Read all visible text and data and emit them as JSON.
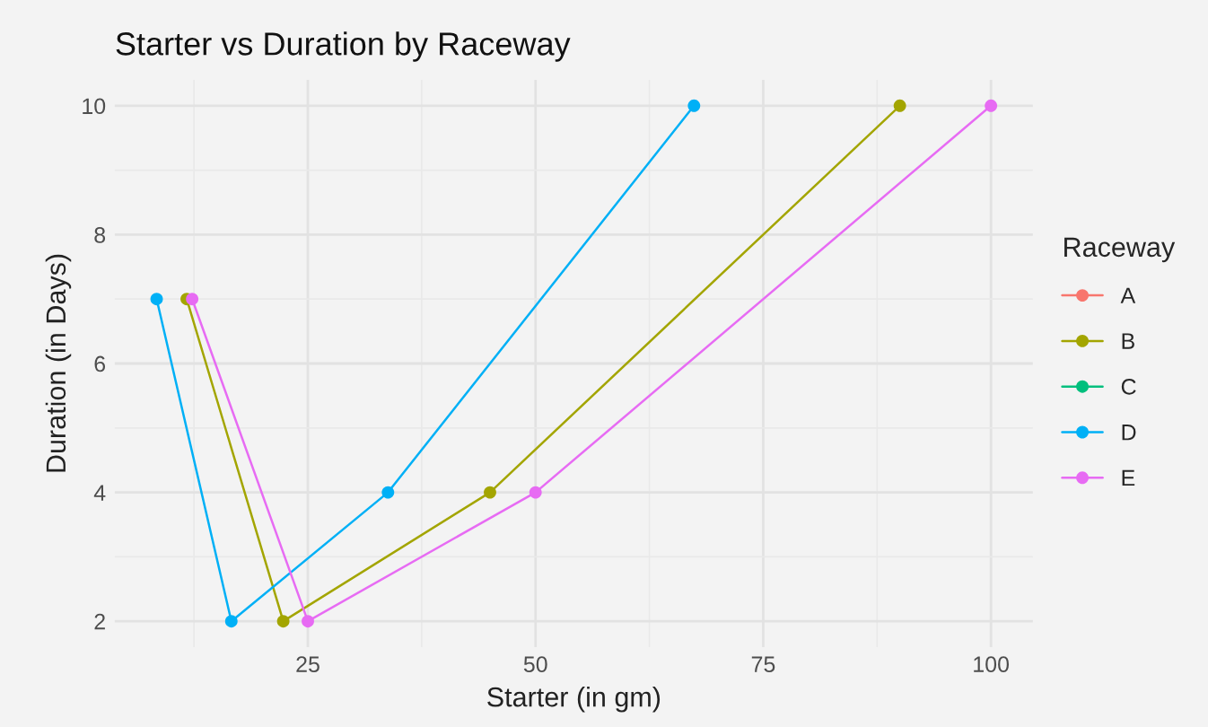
{
  "chart_data": {
    "type": "line",
    "title": "Starter vs Duration by Raceway",
    "xlabel": "Starter (in gm)",
    "ylabel": "Duration (in Days)",
    "legend_title": "Raceway",
    "series": [
      {
        "name": "A",
        "color": "#f8766d"
      },
      {
        "name": "B",
        "color": "#a3a500",
        "x": [
          11.7,
          22.3,
          45,
          90
        ],
        "values": [
          7,
          2,
          4,
          10
        ]
      },
      {
        "name": "C",
        "color": "#00bf7d"
      },
      {
        "name": "D",
        "color": "#00b0f6",
        "x": [
          8.4,
          16.6,
          33.8,
          67.4
        ],
        "values": [
          7,
          2,
          4,
          10
        ]
      },
      {
        "name": "E",
        "color": "#e76bf3",
        "x": [
          12.3,
          25,
          50,
          100
        ],
        "values": [
          7,
          2,
          4,
          10
        ]
      }
    ],
    "xlim": [
      3.8,
      104.6
    ],
    "ylim": [
      1.6,
      10.4
    ],
    "xticks": [
      25,
      50,
      75,
      100
    ],
    "yticks": [
      2,
      4,
      6,
      8,
      10
    ],
    "grid": true,
    "legend": "right",
    "marker": "circle",
    "line_style": "solid"
  }
}
